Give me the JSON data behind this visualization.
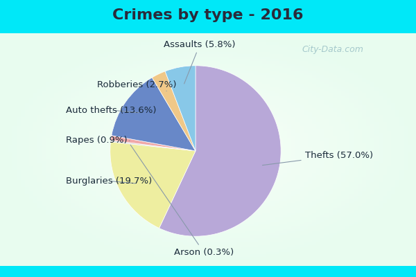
{
  "title": "Crimes by type - 2016",
  "labels": [
    "Thefts",
    "Burglaries",
    "Arson",
    "Rapes",
    "Auto thefts",
    "Robberies",
    "Assaults"
  ],
  "values": [
    57.0,
    19.7,
    0.3,
    0.9,
    13.6,
    2.7,
    5.8
  ],
  "colors": [
    "#b8a8d8",
    "#eeeea0",
    "#d8d8d8",
    "#f0a8a8",
    "#6888c8",
    "#f0c888",
    "#88c8e8"
  ],
  "background_border": "#00e8f8",
  "background_inner": "#e8f8f0",
  "title_fontsize": 16,
  "label_fontsize": 9.5,
  "startangle": 90,
  "watermark": "City-Data.com",
  "label_positions": {
    "Thefts": [
      1.28,
      -0.08,
      "left"
    ],
    "Burglaries": [
      -1.52,
      -0.38,
      "left"
    ],
    "Arson": [
      0.1,
      -1.22,
      "center"
    ],
    "Rapes": [
      -1.52,
      0.1,
      "left"
    ],
    "Auto thefts": [
      -1.52,
      0.45,
      "left"
    ],
    "Robberies": [
      -1.15,
      0.75,
      "left"
    ],
    "Assaults": [
      0.05,
      1.22,
      "center"
    ]
  }
}
